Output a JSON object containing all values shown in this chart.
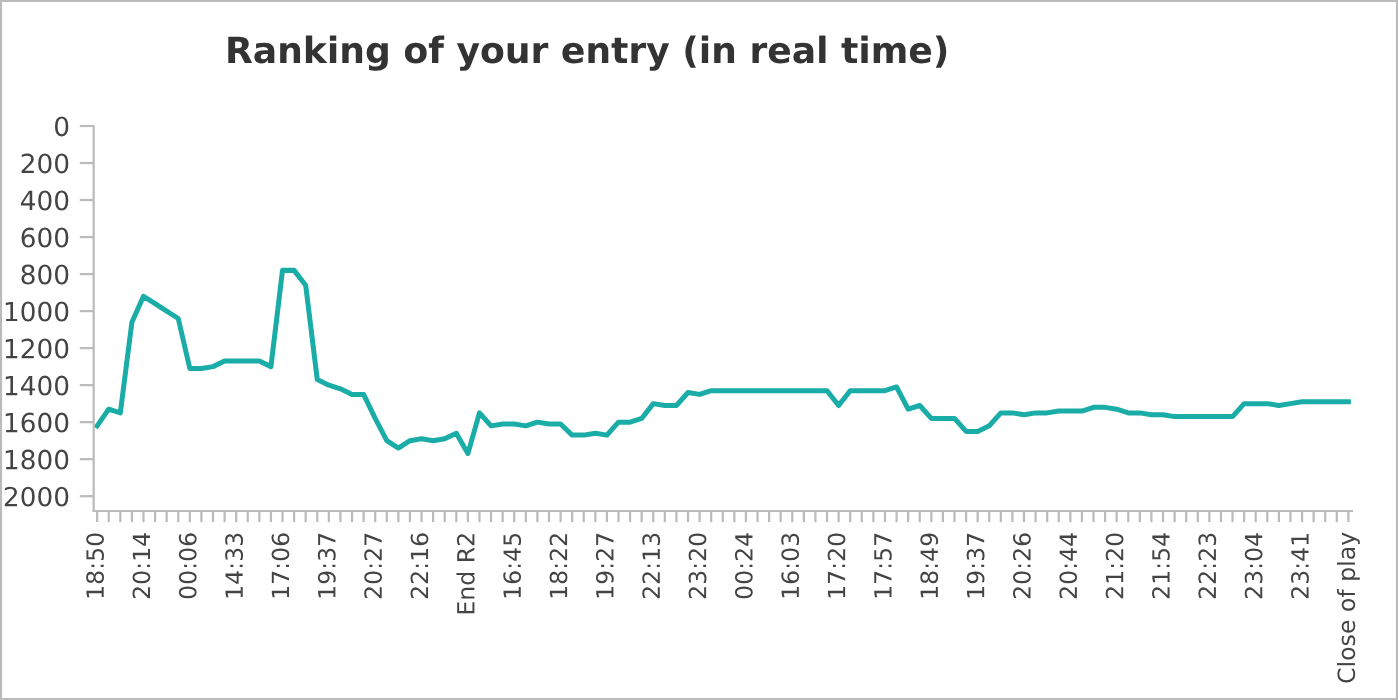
{
  "chart_data": {
    "type": "line",
    "title": "Ranking of your entry (in real time)",
    "categories": [
      "18:50",
      null,
      null,
      null,
      "20:14",
      null,
      null,
      null,
      "00:06",
      null,
      null,
      null,
      "14:33",
      null,
      null,
      null,
      "17:06",
      null,
      null,
      null,
      "19:37",
      null,
      null,
      null,
      "20:27",
      null,
      null,
      null,
      "22:16",
      null,
      null,
      null,
      "End R2",
      null,
      null,
      null,
      "16:45",
      null,
      null,
      null,
      "18:22",
      null,
      null,
      null,
      "19:27",
      null,
      null,
      null,
      "22:13",
      null,
      null,
      null,
      "23:20",
      null,
      null,
      null,
      "00:24",
      null,
      null,
      null,
      "16:03",
      null,
      null,
      null,
      "17:20",
      null,
      null,
      null,
      "17:57",
      null,
      null,
      null,
      "18:49",
      null,
      null,
      null,
      "19:37",
      null,
      null,
      null,
      "20:26",
      null,
      null,
      null,
      "20:44",
      null,
      null,
      null,
      "21:20",
      null,
      null,
      null,
      "21:54",
      null,
      null,
      null,
      "22:23",
      null,
      null,
      null,
      "23:04",
      null,
      null,
      null,
      "23:41",
      null,
      null,
      null,
      "Close of play"
    ],
    "series": [
      {
        "color": "#1aaca6",
        "values": [
          1620,
          1530,
          1550,
          1060,
          920,
          960,
          1000,
          1040,
          1310,
          1310,
          1300,
          1270,
          1270,
          1270,
          1270,
          1300,
          780,
          780,
          860,
          1370,
          1400,
          1420,
          1450,
          1450,
          1580,
          1700,
          1740,
          1700,
          1690,
          1700,
          1690,
          1660,
          1770,
          1550,
          1620,
          1610,
          1610,
          1620,
          1600,
          1610,
          1610,
          1670,
          1670,
          1660,
          1670,
          1600,
          1600,
          1580,
          1500,
          1510,
          1510,
          1440,
          1450,
          1430,
          1430,
          1430,
          1430,
          1430,
          1430,
          1430,
          1430,
          1430,
          1430,
          1430,
          1510,
          1430,
          1430,
          1430,
          1430,
          1410,
          1530,
          1510,
          1580,
          1580,
          1580,
          1650,
          1650,
          1620,
          1550,
          1550,
          1560,
          1550,
          1550,
          1540,
          1540,
          1540,
          1520,
          1520,
          1530,
          1550,
          1550,
          1560,
          1560,
          1570,
          1570,
          1570,
          1570,
          1570,
          1570,
          1500,
          1500,
          1500,
          1510,
          1500,
          1490,
          1490,
          1490,
          1490,
          1490
        ]
      }
    ],
    "ylim": [
      2080,
      0
    ],
    "yticks": [
      0,
      200,
      400,
      600,
      800,
      1000,
      1200,
      1400,
      1600,
      1800,
      2000
    ],
    "grid": false,
    "legend": false,
    "marker": "none",
    "line_style": "solid"
  }
}
